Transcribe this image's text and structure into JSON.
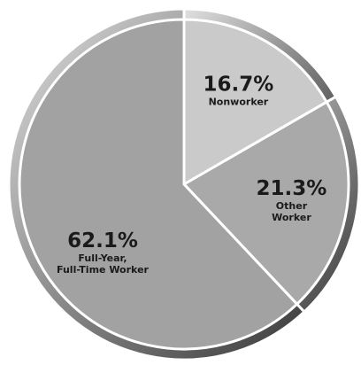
{
  "chart_data": {
    "type": "pie",
    "categories": [
      "Nonworker",
      "Other Worker",
      "Full-Year,\nFull-Time Worker"
    ],
    "values": [
      16.7,
      21.3,
      62.1
    ],
    "value_labels": [
      "16.7%",
      "21.3%",
      "62.1%"
    ],
    "colors": [
      "#cacaca",
      "#a9a9a9",
      "#a2a2a2"
    ]
  }
}
